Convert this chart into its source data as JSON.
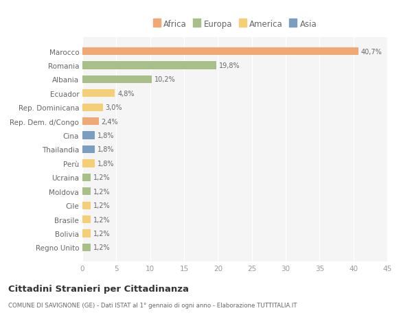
{
  "countries": [
    "Marocco",
    "Romania",
    "Albania",
    "Ecuador",
    "Rep. Dominicana",
    "Rep. Dem. d/Congo",
    "Cina",
    "Thailandia",
    "Perù",
    "Ucraina",
    "Moldova",
    "Cile",
    "Brasile",
    "Bolivia",
    "Regno Unito"
  ],
  "values": [
    40.7,
    19.8,
    10.2,
    4.8,
    3.0,
    2.4,
    1.8,
    1.8,
    1.8,
    1.2,
    1.2,
    1.2,
    1.2,
    1.2,
    1.2
  ],
  "labels": [
    "40,7%",
    "19,8%",
    "10,2%",
    "4,8%",
    "3,0%",
    "2,4%",
    "1,8%",
    "1,8%",
    "1,8%",
    "1,2%",
    "1,2%",
    "1,2%",
    "1,2%",
    "1,2%",
    "1,2%"
  ],
  "continents": [
    "Africa",
    "Europa",
    "Europa",
    "America",
    "America",
    "Africa",
    "Asia",
    "Asia",
    "America",
    "Europa",
    "Europa",
    "America",
    "America",
    "America",
    "Europa"
  ],
  "continent_colors": {
    "Africa": "#F0A875",
    "Europa": "#A8BF8A",
    "America": "#F5CF78",
    "Asia": "#7B9DC0"
  },
  "legend_order": [
    "Africa",
    "Europa",
    "America",
    "Asia"
  ],
  "title": "Cittadini Stranieri per Cittadinanza",
  "subtitle": "COMUNE DI SAVIGNONE (GE) - Dati ISTAT al 1° gennaio di ogni anno - Elaborazione TUTTITALIA.IT",
  "xlim": [
    0,
    45
  ],
  "xticks": [
    0,
    5,
    10,
    15,
    20,
    25,
    30,
    35,
    40,
    45
  ],
  "bg_color": "#ffffff",
  "plot_bg_color": "#f5f5f5",
  "bar_height": 0.55,
  "grid_color": "#ffffff",
  "label_color": "#666666",
  "tick_color": "#999999"
}
